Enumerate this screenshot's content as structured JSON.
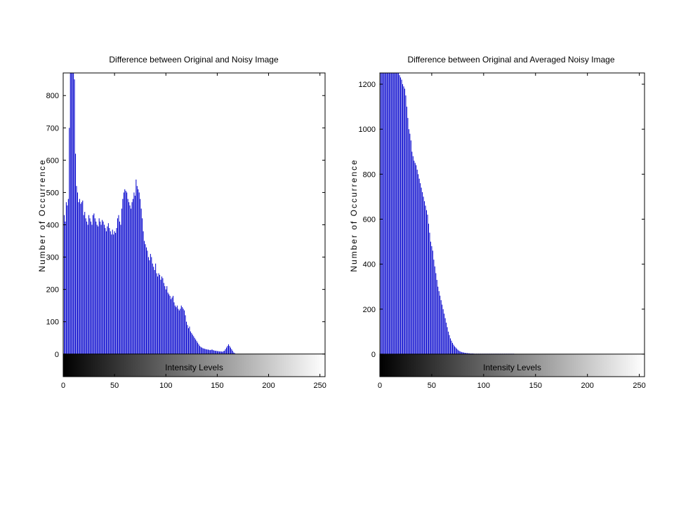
{
  "chart_data": [
    {
      "type": "bar",
      "title": "Difference between Original and Noisy Image",
      "ylabel": "Number of Occurrence",
      "xlabel": "Intensity Levels",
      "xlim": [
        0,
        255
      ],
      "ylim": [
        -70,
        870
      ],
      "xticks": [
        0,
        50,
        100,
        150,
        200,
        250
      ],
      "yticks": [
        0,
        100,
        200,
        300,
        400,
        500,
        600,
        700,
        800
      ],
      "bar_color": "#0000cc",
      "colorbar": "grayscale 0-255",
      "x_start": 0,
      "values": [
        420,
        430,
        410,
        470,
        460,
        480,
        700,
        870,
        870,
        870,
        870,
        850,
        620,
        520,
        500,
        470,
        480,
        465,
        470,
        475,
        430,
        440,
        420,
        410,
        400,
        430,
        420,
        410,
        400,
        430,
        435,
        420,
        410,
        400,
        395,
        420,
        410,
        400,
        415,
        410,
        400,
        390,
        380,
        395,
        405,
        390,
        380,
        370,
        385,
        370,
        380,
        375,
        390,
        420,
        430,
        410,
        400,
        450,
        480,
        500,
        510,
        505,
        500,
        480,
        470,
        460,
        450,
        470,
        480,
        500,
        490,
        540,
        520,
        510,
        500,
        480,
        450,
        420,
        380,
        350,
        340,
        330,
        320,
        300,
        290,
        310,
        300,
        280,
        270,
        260,
        280,
        250,
        240,
        250,
        245,
        230,
        240,
        235,
        220,
        210,
        200,
        210,
        190,
        185,
        180,
        170,
        175,
        180,
        160,
        150,
        145,
        150,
        140,
        135,
        140,
        150,
        145,
        140,
        135,
        120,
        100,
        90,
        80,
        85,
        70,
        65,
        60,
        55,
        50,
        45,
        40,
        35,
        30,
        25,
        22,
        20,
        18,
        17,
        16,
        15,
        14,
        14,
        13,
        12,
        13,
        14,
        12,
        11,
        10,
        10,
        9,
        9,
        8,
        8,
        8,
        7,
        9,
        10,
        15,
        20,
        25,
        30,
        25,
        20,
        15,
        10,
        5,
        3,
        0
      ]
    },
    {
      "type": "bar",
      "title": "Difference between Original and Averaged Noisy Image",
      "ylabel": "Number of Occurrence",
      "xlabel": "Intensity Levels",
      "xlim": [
        0,
        255
      ],
      "ylim": [
        -100,
        1250
      ],
      "xticks": [
        0,
        50,
        100,
        150,
        200,
        250
      ],
      "yticks": [
        0,
        200,
        400,
        600,
        800,
        1000,
        1200
      ],
      "bar_color": "#0000cc",
      "colorbar": "grayscale 0-255",
      "x_start": 0,
      "values": [
        1250,
        1250,
        1250,
        1250,
        1250,
        1250,
        1250,
        1250,
        1250,
        1250,
        1250,
        1250,
        1250,
        1250,
        1250,
        1250,
        1250,
        1250,
        1250,
        1240,
        1230,
        1220,
        1200,
        1190,
        1180,
        1150,
        1100,
        1050,
        1000,
        980,
        950,
        900,
        880,
        860,
        850,
        840,
        820,
        800,
        780,
        760,
        740,
        720,
        700,
        680,
        660,
        640,
        620,
        580,
        540,
        500,
        480,
        460,
        420,
        390,
        360,
        330,
        300,
        280,
        260,
        240,
        220,
        200,
        180,
        160,
        140,
        120,
        100,
        85,
        70,
        60,
        50,
        42,
        35,
        30,
        25,
        20,
        16,
        13,
        11,
        9,
        8,
        7,
        6,
        5,
        5,
        4,
        4,
        3,
        3,
        3,
        3,
        2,
        2,
        2,
        2,
        2,
        2,
        2,
        2,
        2,
        2,
        2,
        2,
        2,
        2,
        2,
        2,
        2,
        2,
        2,
        2,
        2,
        2,
        2,
        2,
        2,
        2,
        2,
        2,
        2,
        2,
        2,
        2,
        2,
        2,
        2,
        2,
        2,
        2,
        2
      ]
    }
  ]
}
